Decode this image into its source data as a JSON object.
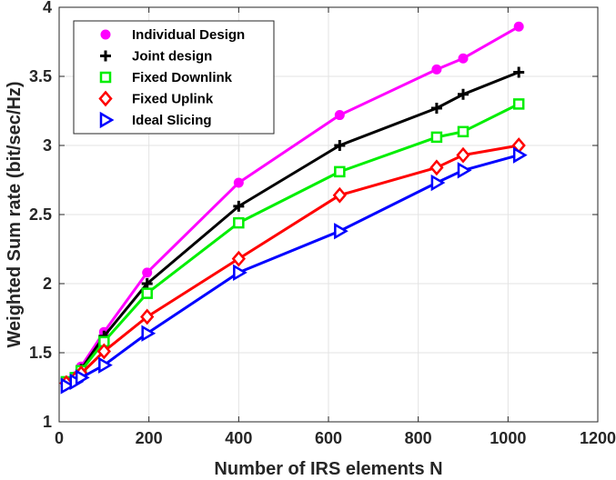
{
  "chart_data": {
    "type": "line",
    "title": "",
    "xlabel": "Number of IRS elements N",
    "ylabel": "Weighted Sum rate (bit/sec/Hz)",
    "xlim": [
      0,
      1200
    ],
    "ylim": [
      1,
      4
    ],
    "xticks": [
      0,
      200,
      400,
      600,
      800,
      1000,
      1200
    ],
    "yticks": [
      1,
      1.5,
      2,
      2.5,
      3,
      3.5,
      4
    ],
    "xtick_labels": [
      "0",
      "200",
      "400",
      "600",
      "800",
      "1000",
      "1200"
    ],
    "ytick_labels": [
      "1",
      "1.5",
      "2",
      "2.5",
      "3",
      "3.5",
      "4"
    ],
    "grid": true,
    "legend_position": "top-left",
    "series": [
      {
        "name": "Individual Design",
        "color": "#ff00ff",
        "marker": "circle",
        "x": [
          16,
          36,
          49,
          100,
          196,
          400,
          625,
          841,
          900,
          1024
        ],
        "y": [
          1.29,
          1.33,
          1.4,
          1.65,
          2.08,
          2.73,
          3.22,
          3.55,
          3.63,
          3.86
        ]
      },
      {
        "name": "Joint design",
        "color": "#000000",
        "marker": "plus",
        "x": [
          16,
          36,
          49,
          100,
          196,
          400,
          625,
          841,
          900,
          1024
        ],
        "y": [
          1.29,
          1.32,
          1.38,
          1.62,
          2.0,
          2.56,
          3.0,
          3.27,
          3.37,
          3.53
        ]
      },
      {
        "name": "Fixed Downlink",
        "color": "#00ee00",
        "marker": "square",
        "x": [
          16,
          36,
          49,
          100,
          196,
          400,
          625,
          841,
          900,
          1024
        ],
        "y": [
          1.29,
          1.32,
          1.37,
          1.58,
          1.93,
          2.44,
          2.81,
          3.06,
          3.1,
          3.3
        ]
      },
      {
        "name": "Fixed Uplink",
        "color": "#ff0000",
        "marker": "diamond",
        "x": [
          16,
          36,
          49,
          100,
          196,
          400,
          625,
          841,
          900,
          1024
        ],
        "y": [
          1.28,
          1.31,
          1.35,
          1.51,
          1.76,
          2.18,
          2.64,
          2.84,
          2.93,
          3.0
        ]
      },
      {
        "name": "Ideal Slicing",
        "color": "#0000ff",
        "marker": "triangle-right",
        "x": [
          16,
          36,
          49,
          100,
          196,
          400,
          625,
          841,
          900,
          1024
        ],
        "y": [
          1.26,
          1.29,
          1.32,
          1.41,
          1.64,
          2.08,
          2.38,
          2.73,
          2.82,
          2.93
        ]
      }
    ]
  }
}
